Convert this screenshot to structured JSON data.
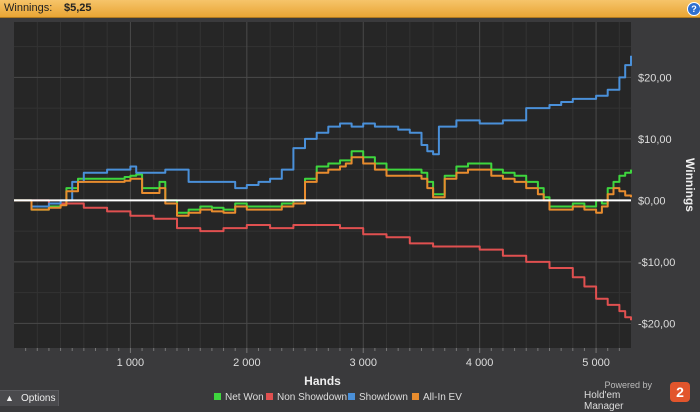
{
  "header": {
    "label": "Winnings:",
    "value": "$5,25",
    "help_icon": "help-icon",
    "help_glyph": "?"
  },
  "chart_data": {
    "type": "line",
    "xlabel": "Hands",
    "ylabel": "Winnings",
    "xlim": [
      0,
      5300
    ],
    "ylim": [
      -24,
      29
    ],
    "x_ticks": [
      1000,
      2000,
      3000,
      4000,
      5000
    ],
    "x_tick_labels": [
      "1 000",
      "2 000",
      "3 000",
      "4 000",
      "5 000"
    ],
    "y_ticks": [
      20,
      10,
      0,
      -10,
      -20
    ],
    "y_tick_labels": [
      "$20,00",
      "$10,00",
      "$0,00",
      "-$10,00",
      "-$20,00"
    ],
    "grid": true,
    "legend_position": "bottom",
    "series": [
      {
        "name": "Net Won",
        "color": "#3ed63e",
        "x": [
          0,
          150,
          300,
          400,
          450,
          550,
          650,
          850,
          950,
          1000,
          1050,
          1100,
          1200,
          1250,
          1300,
          1400,
          1500,
          1600,
          1700,
          1800,
          1900,
          2000,
          2100,
          2200,
          2300,
          2400,
          2500,
          2600,
          2700,
          2800,
          2850,
          2900,
          3000,
          3100,
          3200,
          3300,
          3400,
          3500,
          3550,
          3600,
          3700,
          3800,
          3900,
          4000,
          4100,
          4200,
          4300,
          4400,
          4500,
          4550,
          4600,
          4700,
          4800,
          4900,
          5000,
          5050,
          5100,
          5150,
          5200,
          5250,
          5300
        ],
        "y": [
          0,
          -1.5,
          -1,
          -0.5,
          2,
          3.5,
          3.5,
          3.5,
          3.8,
          4,
          4.2,
          2,
          2,
          3,
          0,
          -2,
          -1.5,
          -1,
          -1.2,
          -1.5,
          -0.5,
          -1,
          -1,
          -1,
          -0.5,
          0,
          3.5,
          5.5,
          6,
          6.5,
          6.5,
          8,
          7,
          6,
          5,
          5,
          5,
          4.5,
          3,
          1,
          4,
          5.5,
          6,
          6,
          5,
          4.5,
          4,
          3,
          2,
          0.5,
          -1,
          -1,
          -0.5,
          -1,
          0,
          -0.5,
          2,
          3,
          4,
          4.5,
          5
        ]
      },
      {
        "name": "Non Showdown",
        "color": "#e05050",
        "x": [
          0,
          300,
          600,
          800,
          1000,
          1200,
          1400,
          1600,
          1800,
          2000,
          2200,
          2400,
          2600,
          2800,
          3000,
          3200,
          3400,
          3600,
          3800,
          4000,
          4200,
          4400,
          4600,
          4800,
          4900,
          5000,
          5100,
          5200,
          5250,
          5300
        ],
        "y": [
          0,
          -0.5,
          -1.2,
          -1.8,
          -2.5,
          -3,
          -4.5,
          -5,
          -4.5,
          -4,
          -4.5,
          -4,
          -4,
          -4.5,
          -5.5,
          -6,
          -7,
          -7.5,
          -7.5,
          -8,
          -9,
          -10,
          -11,
          -12.5,
          -14,
          -16,
          -17,
          -18,
          -19,
          -19.5
        ]
      },
      {
        "name": "Showdown",
        "color": "#4a90d9",
        "x": [
          0,
          150,
          300,
          400,
          500,
          600,
          800,
          950,
          1000,
          1050,
          1200,
          1300,
          1500,
          1700,
          1900,
          2000,
          2100,
          2200,
          2300,
          2400,
          2500,
          2600,
          2700,
          2800,
          2900,
          3000,
          3100,
          3200,
          3300,
          3400,
          3500,
          3550,
          3600,
          3650,
          3800,
          4000,
          4200,
          4400,
          4600,
          4700,
          4800,
          4900,
          5000,
          5100,
          5200,
          5250,
          5300
        ],
        "y": [
          0,
          -1,
          -0.5,
          0,
          3,
          4.5,
          5,
          5,
          5.5,
          4.5,
          4.5,
          5,
          3,
          3,
          2,
          2.5,
          3,
          3.5,
          5,
          8.5,
          10,
          11,
          12,
          12.5,
          12,
          12.5,
          12,
          12,
          11.5,
          11,
          9,
          8,
          7.5,
          12,
          13,
          12.5,
          13,
          15,
          15.5,
          16,
          16.5,
          16.5,
          17,
          18,
          20,
          22,
          23.5
        ]
      },
      {
        "name": "All-In EV",
        "color": "#e88c2e",
        "x": [
          0,
          150,
          300,
          400,
          450,
          550,
          650,
          850,
          950,
          1000,
          1050,
          1100,
          1200,
          1250,
          1300,
          1400,
          1500,
          1600,
          1700,
          1800,
          1900,
          2000,
          2100,
          2200,
          2300,
          2400,
          2500,
          2600,
          2700,
          2800,
          2850,
          2900,
          3000,
          3100,
          3200,
          3300,
          3400,
          3500,
          3550,
          3600,
          3700,
          3800,
          3900,
          4000,
          4100,
          4200,
          4300,
          4400,
          4500,
          4550,
          4600,
          4700,
          4800,
          4900,
          5000,
          5050,
          5100,
          5150,
          5200,
          5250,
          5300
        ],
        "y": [
          0,
          -1.5,
          -1.2,
          -0.8,
          1.5,
          3,
          3,
          3,
          3.2,
          3.5,
          3.5,
          1.2,
          1.2,
          2,
          -0.5,
          -2.5,
          -2,
          -1.5,
          -1.8,
          -2,
          -1,
          -1.5,
          -1.5,
          -1.5,
          -1,
          -0.5,
          3,
          4.5,
          5,
          5.5,
          6,
          7,
          6,
          5,
          4,
          4,
          4,
          3.5,
          2,
          0.5,
          3.5,
          4.5,
          5,
          5,
          4,
          3.5,
          3,
          2,
          1,
          0,
          -1.5,
          -1.5,
          -1,
          -1.5,
          -2,
          -1,
          1,
          2,
          1.5,
          0.8,
          0.5
        ]
      }
    ]
  },
  "legend": [
    {
      "label": "Net Won",
      "color": "#3ed63e"
    },
    {
      "label": "Non Showdown",
      "color": "#e05050"
    },
    {
      "label": "Showdown",
      "color": "#4a90d9"
    },
    {
      "label": "All-In EV",
      "color": "#e88c2e"
    }
  ],
  "footer": {
    "options_label": "Options",
    "options_caret": "▲",
    "powered_by": "Powered by",
    "brand": "Hold'em Manager",
    "logo_text": "2"
  }
}
